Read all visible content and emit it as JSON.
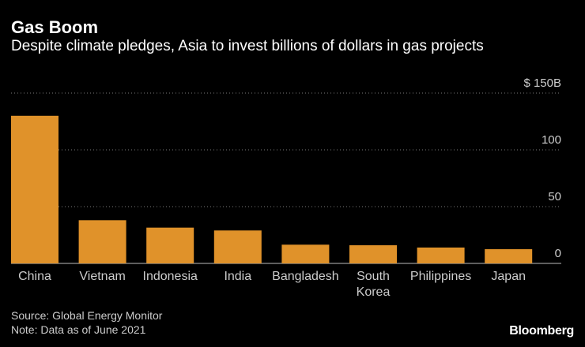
{
  "header": {
    "title": "Gas Boom",
    "subtitle": "Despite climate pledges, Asia to invest billions of dollars in gas projects"
  },
  "footer": {
    "source": "Source: Global Energy Monitor",
    "note": "Note: Data as of June 2021",
    "brand": "Bloomberg"
  },
  "chart_data": {
    "type": "bar",
    "categories": [
      [
        "China"
      ],
      [
        "Vietnam"
      ],
      [
        "Indonesia"
      ],
      [
        "India"
      ],
      [
        "Bangladesh"
      ],
      [
        "South",
        "Korea"
      ],
      [
        "Philippines"
      ],
      [
        "Japan"
      ]
    ],
    "values": [
      130,
      38,
      31.5,
      29,
      16.5,
      16,
      14,
      12.5
    ],
    "ylim": [
      0,
      150
    ],
    "yticks": [
      {
        "value": 0,
        "label": "0"
      },
      {
        "value": 50,
        "label": "50"
      },
      {
        "value": 100,
        "label": "100"
      },
      {
        "value": 150,
        "label": "$ 150B"
      }
    ],
    "bar_color": "#e0922a",
    "grid": true,
    "grid_color": "#777777",
    "axis_color": "#bbbbbb"
  }
}
